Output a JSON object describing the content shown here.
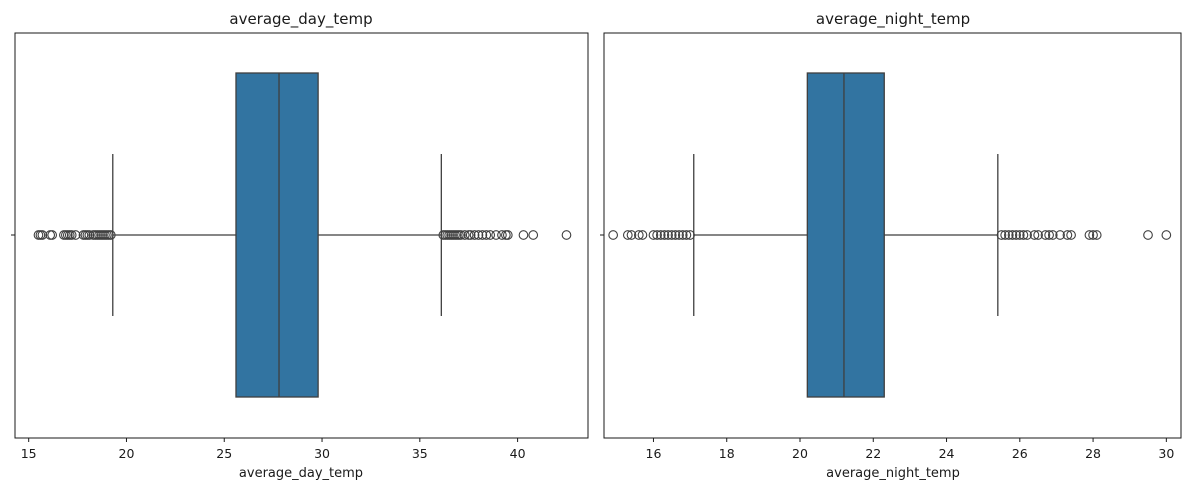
{
  "chart_data": [
    {
      "type": "box",
      "title": "average_day_temp",
      "xlabel": "average_day_temp",
      "ylabel": "",
      "xlim": [
        14.3,
        43.6
      ],
      "xticks": [
        15,
        20,
        25,
        30,
        35,
        40
      ],
      "q1": 25.6,
      "median": 27.8,
      "q3": 29.8,
      "whisker_low": 19.3,
      "whisker_high": 36.1,
      "fliers": [
        15.5,
        15.6,
        15.7,
        16.1,
        16.2,
        16.8,
        16.9,
        17.0,
        17.1,
        17.2,
        17.4,
        17.8,
        17.9,
        18.0,
        18.1,
        18.3,
        18.4,
        18.5,
        18.6,
        18.7,
        18.8,
        18.9,
        19.0,
        19.1,
        19.2,
        36.2,
        36.3,
        36.4,
        36.5,
        36.6,
        36.7,
        36.8,
        36.9,
        37.0,
        37.1,
        37.3,
        37.5,
        37.6,
        37.8,
        38.0,
        38.2,
        38.4,
        38.6,
        38.9,
        39.2,
        39.4,
        39.5,
        40.3,
        40.8,
        42.5
      ],
      "color": "#3274a1",
      "grid": false
    },
    {
      "type": "box",
      "title": "average_night_temp",
      "xlabel": "average_night_temp",
      "ylabel": "",
      "xlim": [
        14.65,
        30.4
      ],
      "xticks": [
        16,
        18,
        20,
        22,
        24,
        26,
        28,
        30
      ],
      "q1": 20.2,
      "median": 21.2,
      "q3": 22.3,
      "whisker_low": 17.1,
      "whisker_high": 25.4,
      "fliers": [
        14.9,
        15.3,
        15.4,
        15.6,
        15.7,
        16.0,
        16.1,
        16.2,
        16.3,
        16.4,
        16.5,
        16.6,
        16.7,
        16.8,
        16.9,
        17.0,
        25.5,
        25.6,
        25.7,
        25.8,
        25.9,
        26.0,
        26.1,
        26.2,
        26.4,
        26.5,
        26.7,
        26.8,
        26.9,
        27.1,
        27.3,
        27.4,
        27.9,
        28.0,
        28.1,
        29.5,
        30.0
      ],
      "color": "#3274a1",
      "grid": false
    }
  ]
}
